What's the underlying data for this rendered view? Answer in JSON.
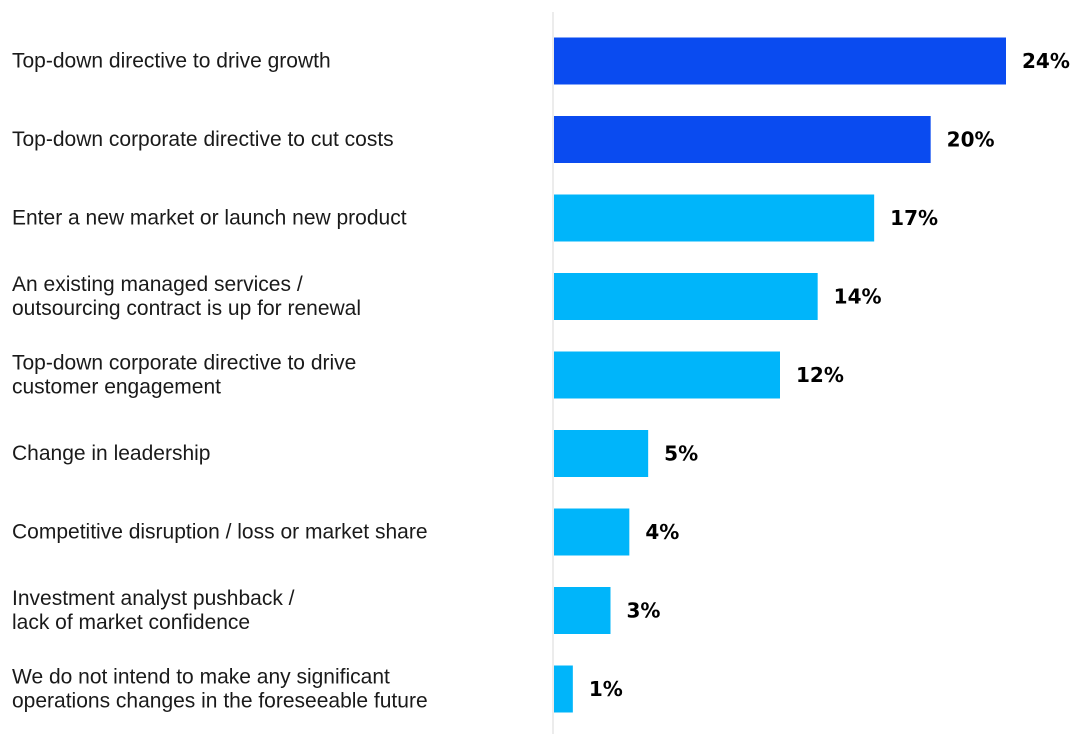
{
  "chart_data": {
    "type": "bar",
    "orientation": "horizontal",
    "categories": [
      [
        "Top-down directive to drive growth"
      ],
      [
        "Top-down corporate directive to cut costs"
      ],
      [
        "Enter a new market or launch new product"
      ],
      [
        "An existing managed services /",
        "outsourcing contract is up for renewal"
      ],
      [
        "Top-down corporate directive to drive",
        "customer engagement"
      ],
      [
        "Change in leadership"
      ],
      [
        "Competitive disruption / loss or market share"
      ],
      [
        "Investment analyst pushback /",
        "lack of market confidence"
      ],
      [
        "We do not intend to make any significant",
        "operations changes in the foreseeable future"
      ]
    ],
    "values": [
      24,
      20,
      17,
      14,
      12,
      5,
      4,
      3,
      1
    ],
    "value_labels": [
      "24%",
      "20%",
      "17%",
      "14%",
      "12%",
      "5%",
      "4%",
      "3%",
      "1%"
    ],
    "bar_colors": [
      "#0a4bf0",
      "#0a4bf0",
      "#00b5fa",
      "#00b5fa",
      "#00b5fa",
      "#00b5fa",
      "#00b5fa",
      "#00b5fa",
      "#00b5fa"
    ],
    "title": "",
    "xlabel": "",
    "ylabel": "",
    "xlim": [
      0,
      24
    ],
    "grid": false,
    "legend": "none"
  },
  "colors": {
    "highlight": "#0a4bf0",
    "standard": "#00b5fa",
    "axis": "#d9d9d9",
    "text": "#1a1a1a"
  }
}
